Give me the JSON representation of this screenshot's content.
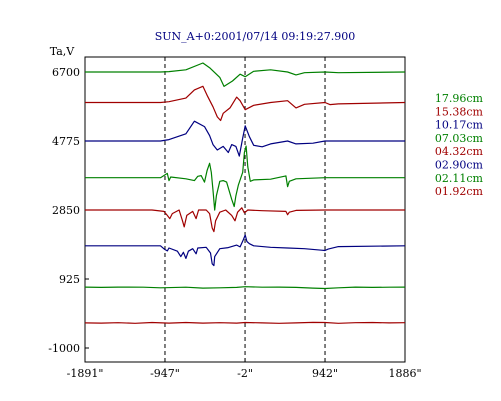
{
  "chart_data": {
    "type": "line",
    "title": "SUN_A+0:2001/07/14 09:19:27.900",
    "ylabel": "Ta,V",
    "xlabel": "",
    "xlim": [
      -1891,
      1886
    ],
    "ylim": [
      -1000,
      7000
    ],
    "grid": false,
    "legend_position": "right",
    "y_ticks": [
      {
        "value": 6700,
        "label": "6700"
      },
      {
        "value": 4775,
        "label": "4775"
      },
      {
        "value": 2850,
        "label": "2850"
      },
      {
        "value": 925,
        "label": "925"
      },
      {
        "value": -1000,
        "label": "-1000"
      }
    ],
    "x_ticks": [
      {
        "value": -1891,
        "label": "-1891\""
      },
      {
        "value": -947,
        "label": "-947\""
      },
      {
        "value": -2,
        "label": "-2\""
      },
      {
        "value": 942,
        "label": "942\""
      },
      {
        "value": 1886,
        "label": "1886\""
      }
    ],
    "vlines": [
      -947,
      -2,
      942
    ],
    "series": [
      {
        "name": "17.96cm",
        "color": "#008000",
        "baseline": 6700,
        "points": [
          [
            -1891,
            0
          ],
          [
            -1000,
            0
          ],
          [
            -900,
            10
          ],
          [
            -700,
            60
          ],
          [
            -500,
            250
          ],
          [
            -420,
            120
          ],
          [
            -300,
            -150
          ],
          [
            -250,
            -400
          ],
          [
            -150,
            -250
          ],
          [
            -60,
            -60
          ],
          [
            0,
            -130
          ],
          [
            100,
            20
          ],
          [
            300,
            60
          ],
          [
            500,
            0
          ],
          [
            600,
            -80
          ],
          [
            700,
            -20
          ],
          [
            942,
            0
          ],
          [
            1100,
            -20
          ],
          [
            1886,
            0
          ]
        ]
      },
      {
        "name": "15.38cm",
        "color": "#a00000",
        "baseline": 5850,
        "points": [
          [
            -1891,
            0
          ],
          [
            -1000,
            0
          ],
          [
            -900,
            20
          ],
          [
            -700,
            120
          ],
          [
            -600,
            350
          ],
          [
            -500,
            450
          ],
          [
            -450,
            200
          ],
          [
            -380,
            -120
          ],
          [
            -330,
            -400
          ],
          [
            -290,
            -500
          ],
          [
            -260,
            -300
          ],
          [
            -180,
            -150
          ],
          [
            -100,
            150
          ],
          [
            -60,
            50
          ],
          [
            0,
            -200
          ],
          [
            100,
            -80
          ],
          [
            300,
            0
          ],
          [
            500,
            50
          ],
          [
            600,
            -150
          ],
          [
            700,
            -50
          ],
          [
            942,
            0
          ],
          [
            1000,
            -60
          ],
          [
            1100,
            -40
          ],
          [
            1886,
            0
          ]
        ]
      },
      {
        "name": "10.17cm",
        "color": "#000080",
        "baseline": 4775,
        "points": [
          [
            -1891,
            0
          ],
          [
            -1000,
            0
          ],
          [
            -900,
            40
          ],
          [
            -700,
            200
          ],
          [
            -600,
            550
          ],
          [
            -480,
            400
          ],
          [
            -420,
            150
          ],
          [
            -380,
            -100
          ],
          [
            -330,
            -250
          ],
          [
            -260,
            -150
          ],
          [
            -200,
            -320
          ],
          [
            -160,
            -100
          ],
          [
            -110,
            -150
          ],
          [
            -70,
            -420
          ],
          [
            -30,
            80
          ],
          [
            0,
            420
          ],
          [
            50,
            120
          ],
          [
            100,
            -120
          ],
          [
            200,
            -160
          ],
          [
            300,
            -80
          ],
          [
            500,
            0
          ],
          [
            600,
            -80
          ],
          [
            800,
            -60
          ],
          [
            942,
            0
          ],
          [
            1886,
            0
          ]
        ]
      },
      {
        "name": "07.03cm",
        "color": "#008000",
        "baseline": 3750,
        "points": [
          [
            -1891,
            0
          ],
          [
            -1000,
            0
          ],
          [
            -920,
            120
          ],
          [
            -900,
            -80
          ],
          [
            -880,
            20
          ],
          [
            -700,
            -30
          ],
          [
            -600,
            -80
          ],
          [
            -560,
            40
          ],
          [
            -520,
            60
          ],
          [
            -480,
            -120
          ],
          [
            -450,
            200
          ],
          [
            -420,
            400
          ],
          [
            -400,
            150
          ],
          [
            -380,
            -350
          ],
          [
            -360,
            -900
          ],
          [
            -340,
            -500
          ],
          [
            -300,
            -100
          ],
          [
            -260,
            -80
          ],
          [
            -220,
            -120
          ],
          [
            -160,
            -600
          ],
          [
            -130,
            -800
          ],
          [
            -110,
            -500
          ],
          [
            -80,
            -200
          ],
          [
            -30,
            150
          ],
          [
            -10,
            700
          ],
          [
            10,
            880
          ],
          [
            30,
            300
          ],
          [
            60,
            -100
          ],
          [
            100,
            -60
          ],
          [
            300,
            -40
          ],
          [
            480,
            50
          ],
          [
            500,
            -250
          ],
          [
            520,
            -100
          ],
          [
            600,
            -30
          ],
          [
            942,
            0
          ],
          [
            1886,
            0
          ]
        ]
      },
      {
        "name": "04.32cm",
        "color": "#a00000",
        "baseline": 2850,
        "points": [
          [
            -1891,
            0
          ],
          [
            -1100,
            0
          ],
          [
            -960,
            -40
          ],
          [
            -920,
            -150
          ],
          [
            -890,
            -240
          ],
          [
            -860,
            -100
          ],
          [
            -780,
            0
          ],
          [
            -740,
            -300
          ],
          [
            -720,
            -470
          ],
          [
            -690,
            -150
          ],
          [
            -620,
            -40
          ],
          [
            -580,
            -240
          ],
          [
            -550,
            0
          ],
          [
            -460,
            0
          ],
          [
            -420,
            -100
          ],
          [
            -390,
            -500
          ],
          [
            -370,
            -600
          ],
          [
            -350,
            -300
          ],
          [
            -300,
            -60
          ],
          [
            -230,
            0
          ],
          [
            -160,
            -150
          ],
          [
            -120,
            -300
          ],
          [
            -90,
            -60
          ],
          [
            -40,
            60
          ],
          [
            -10,
            -80
          ],
          [
            30,
            0
          ],
          [
            200,
            -20
          ],
          [
            480,
            -40
          ],
          [
            500,
            -130
          ],
          [
            520,
            -60
          ],
          [
            600,
            -10
          ],
          [
            942,
            0
          ],
          [
            1886,
            0
          ]
        ]
      },
      {
        "name": "02.90cm",
        "color": "#000080",
        "baseline": 1850,
        "points": [
          [
            -1891,
            0
          ],
          [
            -1000,
            0
          ],
          [
            -950,
            -100
          ],
          [
            -920,
            -140
          ],
          [
            -900,
            -60
          ],
          [
            -800,
            -150
          ],
          [
            -760,
            -300
          ],
          [
            -730,
            -180
          ],
          [
            -700,
            -350
          ],
          [
            -670,
            -150
          ],
          [
            -620,
            -80
          ],
          [
            -580,
            -220
          ],
          [
            -560,
            -60
          ],
          [
            -460,
            -40
          ],
          [
            -410,
            -200
          ],
          [
            -390,
            -500
          ],
          [
            -370,
            -550
          ],
          [
            -360,
            -300
          ],
          [
            -300,
            -80
          ],
          [
            -200,
            -50
          ],
          [
            -100,
            20
          ],
          [
            -60,
            -30
          ],
          [
            -20,
            180
          ],
          [
            0,
            300
          ],
          [
            20,
            120
          ],
          [
            50,
            60
          ],
          [
            100,
            0
          ],
          [
            300,
            -40
          ],
          [
            500,
            -60
          ],
          [
            700,
            -80
          ],
          [
            900,
            -120
          ],
          [
            942,
            -130
          ],
          [
            980,
            -90
          ],
          [
            1100,
            -20
          ],
          [
            1886,
            0
          ]
        ]
      },
      {
        "name": "02.11cm",
        "color": "#008000",
        "baseline": 700,
        "points": [
          [
            -1891,
            0
          ],
          [
            -1700,
            -10
          ],
          [
            -1500,
            0
          ],
          [
            -1200,
            -5
          ],
          [
            -1000,
            -20
          ],
          [
            -700,
            -5
          ],
          [
            -500,
            -30
          ],
          [
            -300,
            -20
          ],
          [
            -100,
            -10
          ],
          [
            0,
            10
          ],
          [
            200,
            -5
          ],
          [
            400,
            0
          ],
          [
            600,
            -10
          ],
          [
            800,
            -30
          ],
          [
            942,
            -40
          ],
          [
            1100,
            -20
          ],
          [
            1300,
            0
          ],
          [
            1500,
            -10
          ],
          [
            1700,
            -5
          ],
          [
            1886,
            0
          ]
        ]
      },
      {
        "name": "01.92cm",
        "color": "#a00000",
        "baseline": -300,
        "points": [
          [
            -1891,
            0
          ],
          [
            -1700,
            -5
          ],
          [
            -1500,
            5
          ],
          [
            -1300,
            -10
          ],
          [
            -1100,
            10
          ],
          [
            -900,
            -5
          ],
          [
            -700,
            10
          ],
          [
            -500,
            -5
          ],
          [
            -300,
            5
          ],
          [
            -100,
            -5
          ],
          [
            0,
            10
          ],
          [
            200,
            0
          ],
          [
            400,
            -10
          ],
          [
            600,
            0
          ],
          [
            800,
            15
          ],
          [
            942,
            10
          ],
          [
            1100,
            -10
          ],
          [
            1300,
            5
          ],
          [
            1500,
            10
          ],
          [
            1700,
            0
          ],
          [
            1886,
            5
          ]
        ]
      }
    ]
  }
}
